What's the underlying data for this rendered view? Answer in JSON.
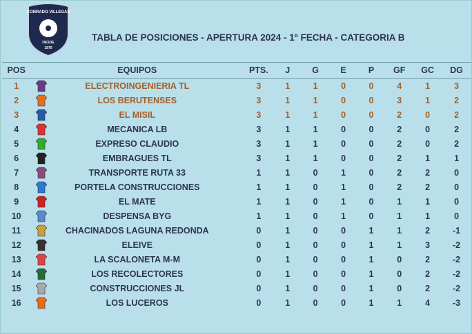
{
  "logo": {
    "name": "CONRADO VILLEGAS",
    "since": "DESDE",
    "year": "1970"
  },
  "header": {
    "title": "TABLA DE POSICIONES - APERTURA 2024 - 1º FECHA - CATEGORIA B"
  },
  "table": {
    "columns": [
      "POS",
      "EQUIPOS",
      "PTS.",
      "J",
      "G",
      "E",
      "P",
      "GF",
      "GC",
      "DG"
    ],
    "rows": [
      [
        1,
        "ELECTROINGENIERIA TL",
        3,
        1,
        1,
        0,
        0,
        4,
        1,
        3
      ],
      [
        2,
        "LOS BERUTENSES",
        3,
        1,
        1,
        0,
        0,
        3,
        1,
        2
      ],
      [
        3,
        "EL MISIL",
        3,
        1,
        1,
        0,
        0,
        2,
        0,
        2
      ],
      [
        4,
        "MECANICA LB",
        3,
        1,
        1,
        0,
        0,
        2,
        0,
        2
      ],
      [
        5,
        "EXPRESO CLAUDIO",
        3,
        1,
        1,
        0,
        0,
        2,
        0,
        2
      ],
      [
        6,
        "EMBRAGUES TL",
        3,
        1,
        1,
        0,
        0,
        2,
        1,
        1
      ],
      [
        7,
        "TRANSPORTE RUTA 33",
        1,
        1,
        0,
        1,
        0,
        2,
        2,
        0
      ],
      [
        8,
        "PORTELA CONSTRUCCIONES",
        1,
        1,
        0,
        1,
        0,
        2,
        2,
        0
      ],
      [
        9,
        "EL MATE",
        1,
        1,
        0,
        1,
        0,
        1,
        1,
        0
      ],
      [
        10,
        "DESPENSA BYG",
        1,
        1,
        0,
        1,
        0,
        1,
        1,
        0
      ],
      [
        11,
        "CHACINADOS LAGUNA REDONDA",
        0,
        1,
        0,
        0,
        1,
        1,
        2,
        -1
      ],
      [
        12,
        "ELEIVE",
        0,
        1,
        0,
        0,
        1,
        1,
        3,
        -2
      ],
      [
        13,
        "LA SCALONETA M-M",
        0,
        1,
        0,
        0,
        1,
        0,
        2,
        -2
      ],
      [
        14,
        "LOS RECOLECTORES",
        0,
        1,
        0,
        0,
        1,
        0,
        2,
        -2
      ],
      [
        15,
        "CONSTRUCCIONES JL",
        0,
        1,
        0,
        0,
        1,
        0,
        2,
        -2
      ],
      [
        16,
        "LOS LUCEROS",
        0,
        1,
        0,
        0,
        1,
        1,
        4,
        -3
      ]
    ]
  }
}
